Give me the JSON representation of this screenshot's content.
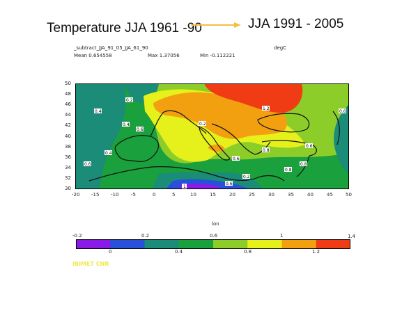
{
  "slide": {
    "title_left": "Temperature JJA 1961 -90",
    "title_right": "JJA 1991 - 2005",
    "arrow_color": "#f0c040"
  },
  "plot_header": {
    "filename": "_subtract_JJA_91_05_JJA_61_90",
    "units": "degC",
    "mean": "Mean 0.654558",
    "max": "Max 1.37056",
    "min": "Min -0.112221"
  },
  "map": {
    "lat_labels": [
      "50",
      "48",
      "46",
      "44",
      "42",
      "40",
      "38",
      "36",
      "34",
      "32",
      "30"
    ],
    "lon_labels": [
      "-20",
      "-15",
      "-10",
      "-5",
      "0",
      "5",
      "10",
      "15",
      "20",
      "25",
      "30",
      "35",
      "40",
      "45",
      "50"
    ],
    "lon_axis_label": "lon",
    "contour_labels": [
      "0.2",
      "0.4",
      "0.4",
      "0.6",
      "0.4",
      "0.6",
      "0.6",
      "1.2",
      "0.8",
      "0.6",
      "0.8",
      "0.6",
      "0.8",
      "0.2",
      "0.6",
      "0.2",
      "1"
    ]
  },
  "colorbar": {
    "top_labels": [
      "-0.2",
      "0.2",
      "0.6",
      "1",
      "1.4"
    ],
    "bottom_labels": [
      "0",
      "0.4",
      "0.8",
      "1.2"
    ],
    "colors": [
      "#8a1ae8",
      "#2850d8",
      "#1a8c78",
      "#1aa03c",
      "#8ccd2a",
      "#e6f01a",
      "#f2a010",
      "#f03c14"
    ]
  },
  "credit": "IBIMET CNR"
}
